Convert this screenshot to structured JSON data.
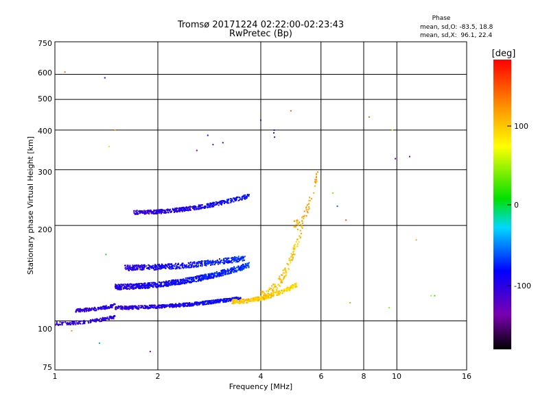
{
  "chart_data": {
    "type": "scatter",
    "title": "Tromsø 20171224 02:22:00-02:23:43",
    "subtitle": "RwPretec (Bp)",
    "xlabel": "Frequency [MHz]",
    "ylabel": "Stationary phase Virtual Height [km]",
    "x_scale": "log2",
    "y_scale": "log",
    "xlim": [
      1,
      16
    ],
    "ylim": [
      70,
      760
    ],
    "x_ticks": [
      "1",
      "2",
      "4",
      "6",
      "8",
      "10",
      "16"
    ],
    "y_ticks": [
      "75",
      "100",
      "200",
      "300",
      "400",
      "500",
      "600",
      "750"
    ],
    "stats": {
      "heading": "Phase",
      "line_o": "mean, sd,O: -83.5, 18.8",
      "line_x": "mean, sd,X:  96.1, 22.4"
    },
    "colorbar": {
      "label": "[deg]",
      "range": [
        -180,
        180
      ],
      "ticks": [
        "100",
        "0",
        "-100"
      ]
    },
    "grid": true,
    "traces": [
      {
        "x_start": 1.0,
        "x_end": 1.5,
        "h_start": 98,
        "h_end": 103,
        "phase_start": -105,
        "phase_end": -100,
        "density": 0.5,
        "spread": 2.5
      },
      {
        "x_start": 1.15,
        "x_end": 1.5,
        "h_start": 108,
        "h_end": 112,
        "phase_start": -105,
        "phase_end": -100,
        "density": 0.6,
        "spread": 2.5
      },
      {
        "x_start": 1.5,
        "x_end": 3.5,
        "h_start": 110,
        "h_end": 118,
        "phase_start": -105,
        "phase_end": -80,
        "density": 0.8,
        "spread": 2.5
      },
      {
        "x_start": 1.5,
        "x_end": 3.7,
        "h_start": 128,
        "h_end": 150,
        "phase_start": -100,
        "phase_end": -70,
        "density": 1.0,
        "spread": 4
      },
      {
        "x_start": 1.6,
        "x_end": 3.6,
        "h_start": 147,
        "h_end": 158,
        "phase_start": -100,
        "phase_end": -70,
        "density": 0.7,
        "spread": 4
      },
      {
        "x_start": 1.7,
        "x_end": 3.7,
        "h_start": 220,
        "h_end": 248,
        "phase_start": -110,
        "phase_end": -80,
        "density": 0.7,
        "spread": 3
      },
      {
        "x_start": 3.3,
        "x_end": 5.1,
        "h_start": 115,
        "h_end": 130,
        "phase_start": 100,
        "phase_end": 90,
        "density": 0.8,
        "spread": 3
      },
      {
        "x_start": 4.0,
        "x_end": 5.3,
        "h_start": 120,
        "h_end": 200,
        "phase_start": 100,
        "phase_end": 100,
        "density": 0.6,
        "spread": 8
      },
      {
        "x_start": 5.0,
        "x_end": 5.9,
        "h_start": 200,
        "h_end": 300,
        "phase_start": 110,
        "phase_end": 115,
        "density": 0.4,
        "spread": 8
      }
    ],
    "scattered": [
      {
        "x": 1.07,
        "h": 610,
        "phase": 140
      },
      {
        "x": 1.4,
        "h": 585,
        "phase": -110
      },
      {
        "x": 1.5,
        "h": 400,
        "phase": 120
      },
      {
        "x": 1.44,
        "h": 355,
        "phase": 60
      },
      {
        "x": 1.41,
        "h": 162,
        "phase": 10
      },
      {
        "x": 1.35,
        "h": 85,
        "phase": -40
      },
      {
        "x": 1.9,
        "h": 80,
        "phase": -140
      },
      {
        "x": 1.12,
        "h": 93,
        "phase": 120
      },
      {
        "x": 4.38,
        "h": 400,
        "phase": -110
      },
      {
        "x": 4.37,
        "h": 392,
        "phase": -105
      },
      {
        "x": 4.39,
        "h": 380,
        "phase": -110
      },
      {
        "x": 4.0,
        "h": 430,
        "phase": -110
      },
      {
        "x": 4.9,
        "h": 460,
        "phase": 140
      },
      {
        "x": 6.5,
        "h": 253,
        "phase": 40
      },
      {
        "x": 6.7,
        "h": 230,
        "phase": -60
      },
      {
        "x": 7.1,
        "h": 208,
        "phase": 150
      },
      {
        "x": 7.3,
        "h": 114,
        "phase": 115
      },
      {
        "x": 8.3,
        "h": 440,
        "phase": 140
      },
      {
        "x": 9.7,
        "h": 400,
        "phase": 60
      },
      {
        "x": 9.9,
        "h": 325,
        "phase": -140
      },
      {
        "x": 10.9,
        "h": 330,
        "phase": -140
      },
      {
        "x": 9.5,
        "h": 110,
        "phase": 40
      },
      {
        "x": 12.6,
        "h": 120,
        "phase": 50
      },
      {
        "x": 12.9,
        "h": 120,
        "phase": 20
      },
      {
        "x": 11.4,
        "h": 180,
        "phase": 110
      },
      {
        "x": 2.9,
        "h": 360,
        "phase": -130
      },
      {
        "x": 3.1,
        "h": 365,
        "phase": -120
      },
      {
        "x": 2.6,
        "h": 345,
        "phase": -130
      },
      {
        "x": 2.8,
        "h": 385,
        "phase": -110
      }
    ]
  }
}
